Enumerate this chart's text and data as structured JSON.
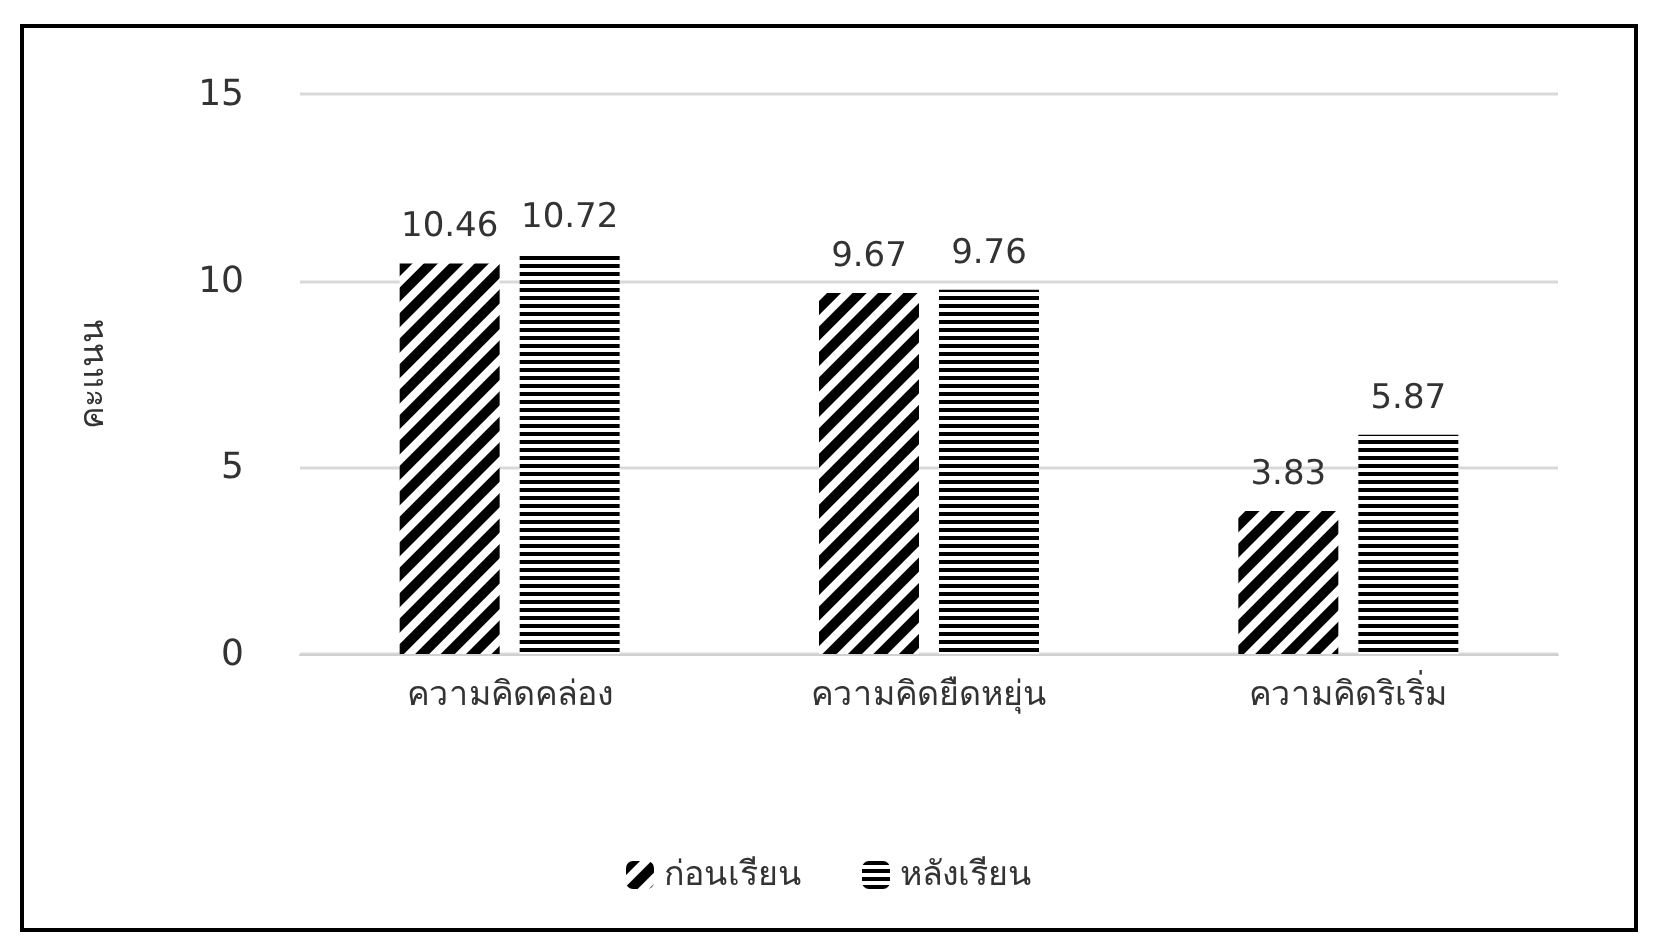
{
  "chart_data": {
    "type": "bar",
    "ylabel": "คะแนน",
    "categories": [
      "ความคิดคล่อง",
      "ความคิดยืดหยุ่น",
      "ความคิดริเริ่ม"
    ],
    "series": [
      {
        "name": "ก่อนเรียน",
        "color": "#000000",
        "values": [
          10.46,
          9.67,
          3.83
        ]
      },
      {
        "name": "หลังเรียน",
        "color": "#000000",
        "values": [
          10.72,
          9.76,
          5.87
        ]
      }
    ],
    "ylim": [
      0,
      15
    ],
    "yticks": [
      0,
      5,
      10,
      15
    ],
    "grid": "y",
    "legend": "bottom",
    "data_labels": true
  }
}
